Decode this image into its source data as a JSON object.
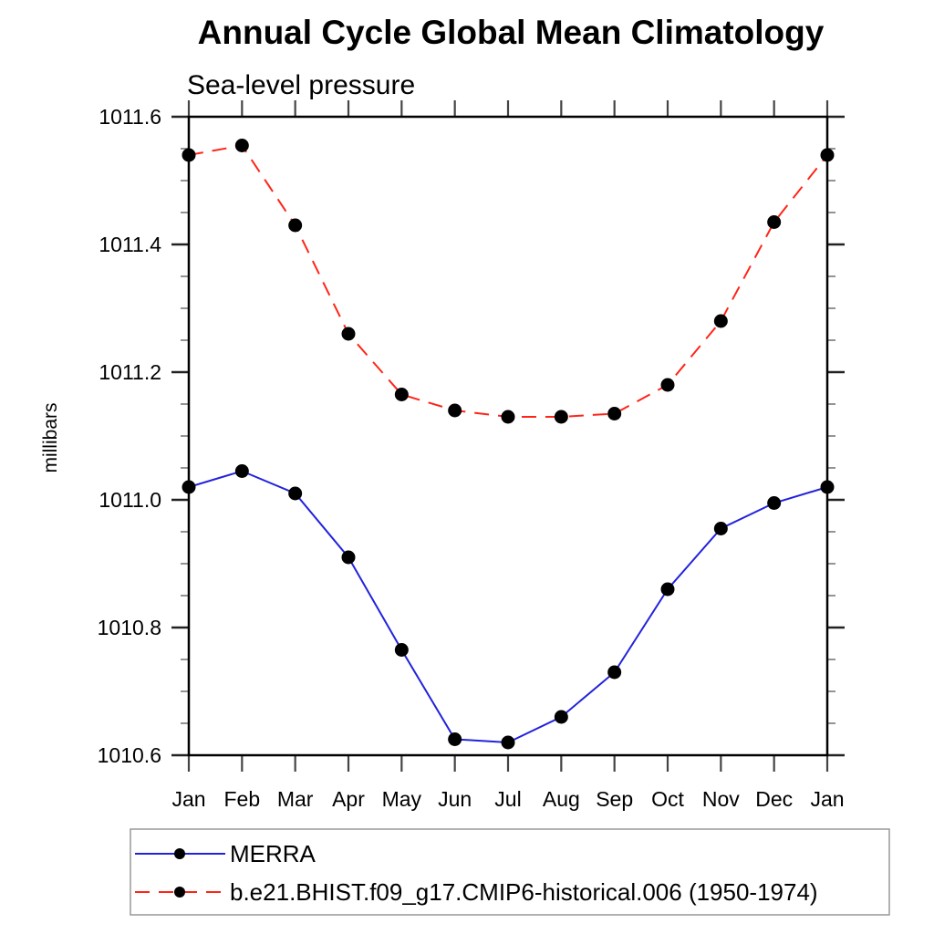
{
  "title": "Annual Cycle Global Mean Climatology",
  "subtitle": "Sea-level pressure",
  "ylabel": "millibars",
  "colors": {
    "merra_line": "#2222dd",
    "model_line": "#ff2418",
    "marker": "#000000",
    "axis": "#000000",
    "major_tick": "#222222",
    "minor_tick": "#888888",
    "month_tick": "#444444",
    "legend_border": "#999999"
  },
  "chart_data": {
    "type": "line",
    "title": "Annual Cycle Global Mean Climatology",
    "subtitle": "Sea-level pressure",
    "xlabel": "",
    "ylabel": "millibars",
    "x_tick_labels": [
      "Jan",
      "Feb",
      "Mar",
      "Apr",
      "May",
      "Jun",
      "Jul",
      "Aug",
      "Sep",
      "Oct",
      "Nov",
      "Dec",
      "Jan"
    ],
    "ylim": [
      1010.6,
      1011.6
    ],
    "y_major_ticks": [
      1010.6,
      1010.8,
      1011.0,
      1011.2,
      1011.4,
      1011.6
    ],
    "y_tick_labels": [
      "1010.6",
      "1010.8",
      "1011.0",
      "1011.2",
      "1011.4",
      "1011.6"
    ],
    "y_minor_tick_step": 0.05,
    "grid": false,
    "legend_position": "bottom-left",
    "marker": "black-dot",
    "series": [
      {
        "name": "MERRA",
        "color": "#2222dd",
        "line_style": "solid",
        "values": [
          1011.02,
          1011.045,
          1011.01,
          1010.91,
          1010.765,
          1010.625,
          1010.62,
          1010.66,
          1010.73,
          1010.86,
          1010.955,
          1010.995,
          1011.02
        ]
      },
      {
        "name": "b.e21.BHIST.f09_g17.CMIP6-historical.006 (1950-1974)",
        "color": "#ff2418",
        "line_style": "dashed",
        "values": [
          1011.54,
          1011.555,
          1011.43,
          1011.26,
          1011.165,
          1011.14,
          1011.13,
          1011.13,
          1011.135,
          1011.18,
          1011.28,
          1011.435,
          1011.54
        ]
      }
    ]
  }
}
